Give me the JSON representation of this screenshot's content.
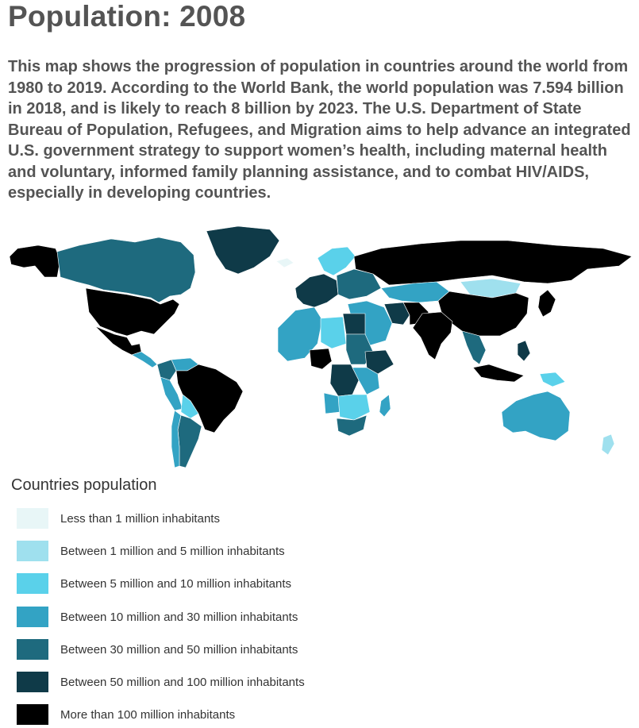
{
  "title": "Population: 2008",
  "description": "This map shows the progression of population in countries around the world from 1980 to 2019. According to the World Bank, the world population was 7.594 billion in 2018, and is likely to reach 8 billion by 2023. The U.S. Department of State Bureau of Population, Refugees, and Migration aims to help advance an integrated U.S. government strategy to support women’s health, including maternal health and voluntary, informed family planning assistance, and to combat HIV/AIDS, especially in developing countries.",
  "legend": {
    "title": "Countries population",
    "items": [
      {
        "label": "Less than 1 million inhabitants",
        "color": "#e8f6f7"
      },
      {
        "label": "Between 1 million and 5 million inhabitants",
        "color": "#9fe0ee"
      },
      {
        "label": "Between 5 million and 10 million inhabitants",
        "color": "#5ad1ea"
      },
      {
        "label": "Between 10 million and 30 million inhabitants",
        "color": "#33a3c4"
      },
      {
        "label": "Between 30 million and 50 million inhabitants",
        "color": "#1e6a7e"
      },
      {
        "label": "Between 50 million and 100 million inhabitants",
        "color": "#0f3a48"
      },
      {
        "label": "More than 100 million inhabitants",
        "color": "#000000"
      }
    ]
  },
  "map": {
    "regions": [
      {
        "name": "Alaska",
        "class": 6
      },
      {
        "name": "Canada",
        "class": 4
      },
      {
        "name": "Greenland",
        "class": 5
      },
      {
        "name": "United States",
        "class": 6
      },
      {
        "name": "Mexico",
        "class": 6
      },
      {
        "name": "Central America",
        "class": 3
      },
      {
        "name": "Colombia",
        "class": 4
      },
      {
        "name": "Venezuela",
        "class": 3
      },
      {
        "name": "Peru",
        "class": 3
      },
      {
        "name": "Brazil",
        "class": 6
      },
      {
        "name": "Bolivia",
        "class": 2
      },
      {
        "name": "Argentina",
        "class": 4
      },
      {
        "name": "Chile",
        "class": 3
      },
      {
        "name": "Iceland",
        "class": 0
      },
      {
        "name": "Scandinavia",
        "class": 2
      },
      {
        "name": "Western Europe",
        "class": 5
      },
      {
        "name": "Eastern Europe",
        "class": 4
      },
      {
        "name": "Russia",
        "class": 6
      },
      {
        "name": "Kazakhstan",
        "class": 3
      },
      {
        "name": "Mongolia",
        "class": 1
      },
      {
        "name": "China",
        "class": 6
      },
      {
        "name": "Middle East",
        "class": 3
      },
      {
        "name": "Iran",
        "class": 5
      },
      {
        "name": "Pakistan",
        "class": 6
      },
      {
        "name": "India",
        "class": 6
      },
      {
        "name": "Southeast Asia",
        "class": 4
      },
      {
        "name": "Japan",
        "class": 6
      },
      {
        "name": "Indonesia",
        "class": 6
      },
      {
        "name": "Philippines",
        "class": 5
      },
      {
        "name": "Papua New Guinea",
        "class": 2
      },
      {
        "name": "Australia",
        "class": 3
      },
      {
        "name": "New Zealand",
        "class": 1
      },
      {
        "name": "Sahara countries",
        "class": 3
      },
      {
        "name": "Libya",
        "class": 2
      },
      {
        "name": "Egypt",
        "class": 5
      },
      {
        "name": "Sudan",
        "class": 4
      },
      {
        "name": "Nigeria",
        "class": 6
      },
      {
        "name": "Ethiopia",
        "class": 5
      },
      {
        "name": "Congo",
        "class": 5
      },
      {
        "name": "Central Africa",
        "class": 3
      },
      {
        "name": "Angola",
        "class": 3
      },
      {
        "name": "Southern Africa",
        "class": 2
      },
      {
        "name": "South Africa",
        "class": 4
      },
      {
        "name": "Madagascar",
        "class": 3
      }
    ]
  }
}
